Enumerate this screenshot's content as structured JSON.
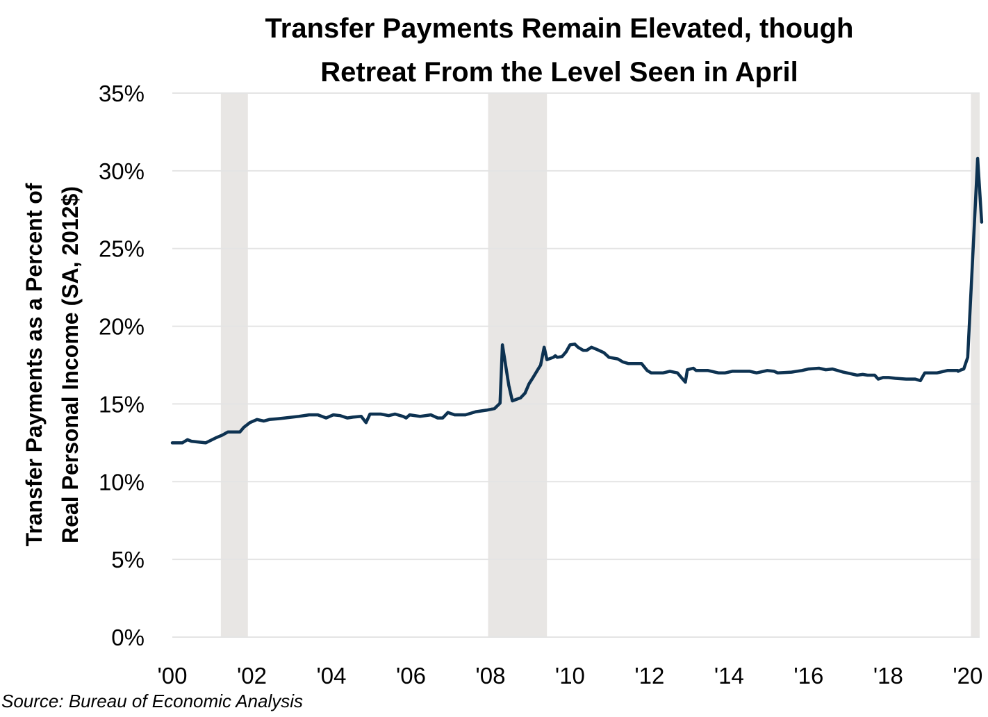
{
  "chart_data": {
    "type": "line",
    "title": [
      "Transfer Payments Remain Elevated, though",
      "Retreat From the Level Seen in April"
    ],
    "ylabel": [
      "Transfer Payments as a Percent of",
      "Real Personal Income (SA, 2012$)"
    ],
    "xlabel": "",
    "source": "Source: Bureau of Economic Analysis",
    "ylim": [
      0,
      35
    ],
    "xlim": [
      2000,
      2020.3
    ],
    "yticks": [
      0,
      5,
      10,
      15,
      20,
      25,
      30,
      35
    ],
    "ytick_labels": [
      "0%",
      "5%",
      "10%",
      "15%",
      "20%",
      "25%",
      "30%",
      "35%"
    ],
    "xticks": [
      2000,
      2002,
      2004,
      2006,
      2008,
      2010,
      2012,
      2014,
      2016,
      2018,
      2020
    ],
    "xtick_labels": [
      "'00",
      "'02",
      "'04",
      "'06",
      "'08",
      "'10",
      "'12",
      "'14",
      "'16",
      "'18",
      "'20"
    ],
    "grid": "horizontal",
    "line_color": "#0d3251",
    "recession_color": "#e8e6e4",
    "recessions": [
      [
        2001.22,
        2001.9
      ],
      [
        2007.94,
        2009.42
      ],
      [
        2020.08,
        2020.3
      ]
    ],
    "series": [
      {
        "name": "Transfer Payments as a Percent of Real Personal Income",
        "points": [
          [
            2000.0,
            12.5
          ],
          [
            2000.25,
            12.5
          ],
          [
            2000.38,
            12.7
          ],
          [
            2000.48,
            12.6
          ],
          [
            2000.84,
            12.5
          ],
          [
            2001.08,
            12.8
          ],
          [
            2001.26,
            13.0
          ],
          [
            2001.4,
            13.2
          ],
          [
            2001.6,
            13.2
          ],
          [
            2001.7,
            13.2
          ],
          [
            2001.8,
            13.5
          ],
          [
            2001.95,
            13.8
          ],
          [
            2002.13,
            14.0
          ],
          [
            2002.3,
            13.9
          ],
          [
            2002.44,
            14.0
          ],
          [
            2002.65,
            14.05
          ],
          [
            2002.83,
            14.1
          ],
          [
            2003.18,
            14.2
          ],
          [
            2003.44,
            14.3
          ],
          [
            2003.66,
            14.3
          ],
          [
            2003.87,
            14.1
          ],
          [
            2004.05,
            14.3
          ],
          [
            2004.22,
            14.25
          ],
          [
            2004.4,
            14.1
          ],
          [
            2004.54,
            14.15
          ],
          [
            2004.75,
            14.2
          ],
          [
            2004.87,
            13.8
          ],
          [
            2004.97,
            14.35
          ],
          [
            2005.24,
            14.35
          ],
          [
            2005.44,
            14.25
          ],
          [
            2005.6,
            14.35
          ],
          [
            2005.8,
            14.2
          ],
          [
            2005.88,
            14.1
          ],
          [
            2005.97,
            14.3
          ],
          [
            2006.23,
            14.2
          ],
          [
            2006.5,
            14.3
          ],
          [
            2006.67,
            14.1
          ],
          [
            2006.8,
            14.1
          ],
          [
            2006.93,
            14.45
          ],
          [
            2007.1,
            14.3
          ],
          [
            2007.37,
            14.3
          ],
          [
            2007.63,
            14.5
          ],
          [
            2007.9,
            14.6
          ],
          [
            2008.1,
            14.7
          ],
          [
            2008.24,
            15.05
          ],
          [
            2008.3,
            18.8
          ],
          [
            2008.46,
            16.2
          ],
          [
            2008.55,
            15.2
          ],
          [
            2008.76,
            15.4
          ],
          [
            2008.87,
            15.7
          ],
          [
            2008.97,
            16.3
          ],
          [
            2009.07,
            16.7
          ],
          [
            2009.2,
            17.25
          ],
          [
            2009.26,
            17.5
          ],
          [
            2009.35,
            18.65
          ],
          [
            2009.42,
            17.85
          ],
          [
            2009.58,
            18.0
          ],
          [
            2009.63,
            18.1
          ],
          [
            2009.68,
            18.0
          ],
          [
            2009.8,
            18.05
          ],
          [
            2009.9,
            18.35
          ],
          [
            2010.0,
            18.8
          ],
          [
            2010.12,
            18.85
          ],
          [
            2010.2,
            18.65
          ],
          [
            2010.33,
            18.45
          ],
          [
            2010.42,
            18.45
          ],
          [
            2010.54,
            18.65
          ],
          [
            2010.68,
            18.5
          ],
          [
            2010.85,
            18.3
          ],
          [
            2010.98,
            18.0
          ],
          [
            2011.2,
            17.9
          ],
          [
            2011.33,
            17.7
          ],
          [
            2011.47,
            17.6
          ],
          [
            2011.8,
            17.6
          ],
          [
            2011.94,
            17.15
          ],
          [
            2012.04,
            17.0
          ],
          [
            2012.34,
            17.0
          ],
          [
            2012.51,
            17.1
          ],
          [
            2012.7,
            17.0
          ],
          [
            2012.8,
            16.7
          ],
          [
            2012.9,
            16.4
          ],
          [
            2012.95,
            17.2
          ],
          [
            2013.1,
            17.3
          ],
          [
            2013.17,
            17.15
          ],
          [
            2013.47,
            17.15
          ],
          [
            2013.73,
            17.0
          ],
          [
            2013.9,
            17.0
          ],
          [
            2014.08,
            17.1
          ],
          [
            2014.52,
            17.1
          ],
          [
            2014.69,
            17.0
          ],
          [
            2014.87,
            17.1
          ],
          [
            2014.96,
            17.15
          ],
          [
            2015.13,
            17.1
          ],
          [
            2015.22,
            17.0
          ],
          [
            2015.57,
            17.05
          ],
          [
            2015.83,
            17.15
          ],
          [
            2016.0,
            17.25
          ],
          [
            2016.26,
            17.3
          ],
          [
            2016.43,
            17.2
          ],
          [
            2016.6,
            17.25
          ],
          [
            2016.87,
            17.05
          ],
          [
            2017.05,
            16.95
          ],
          [
            2017.22,
            16.85
          ],
          [
            2017.36,
            16.9
          ],
          [
            2017.48,
            16.85
          ],
          [
            2017.66,
            16.85
          ],
          [
            2017.75,
            16.6
          ],
          [
            2017.87,
            16.7
          ],
          [
            2018.01,
            16.7
          ],
          [
            2018.18,
            16.65
          ],
          [
            2018.45,
            16.6
          ],
          [
            2018.68,
            16.6
          ],
          [
            2018.81,
            16.5
          ],
          [
            2018.92,
            17.0
          ],
          [
            2019.23,
            17.0
          ],
          [
            2019.49,
            17.15
          ],
          [
            2019.75,
            17.15
          ],
          [
            2019.76,
            17.1
          ],
          [
            2019.84,
            17.2
          ],
          [
            2019.9,
            17.25
          ],
          [
            2020.0,
            18.0
          ],
          [
            2020.25,
            30.8
          ],
          [
            2020.35,
            26.7
          ]
        ]
      }
    ]
  }
}
